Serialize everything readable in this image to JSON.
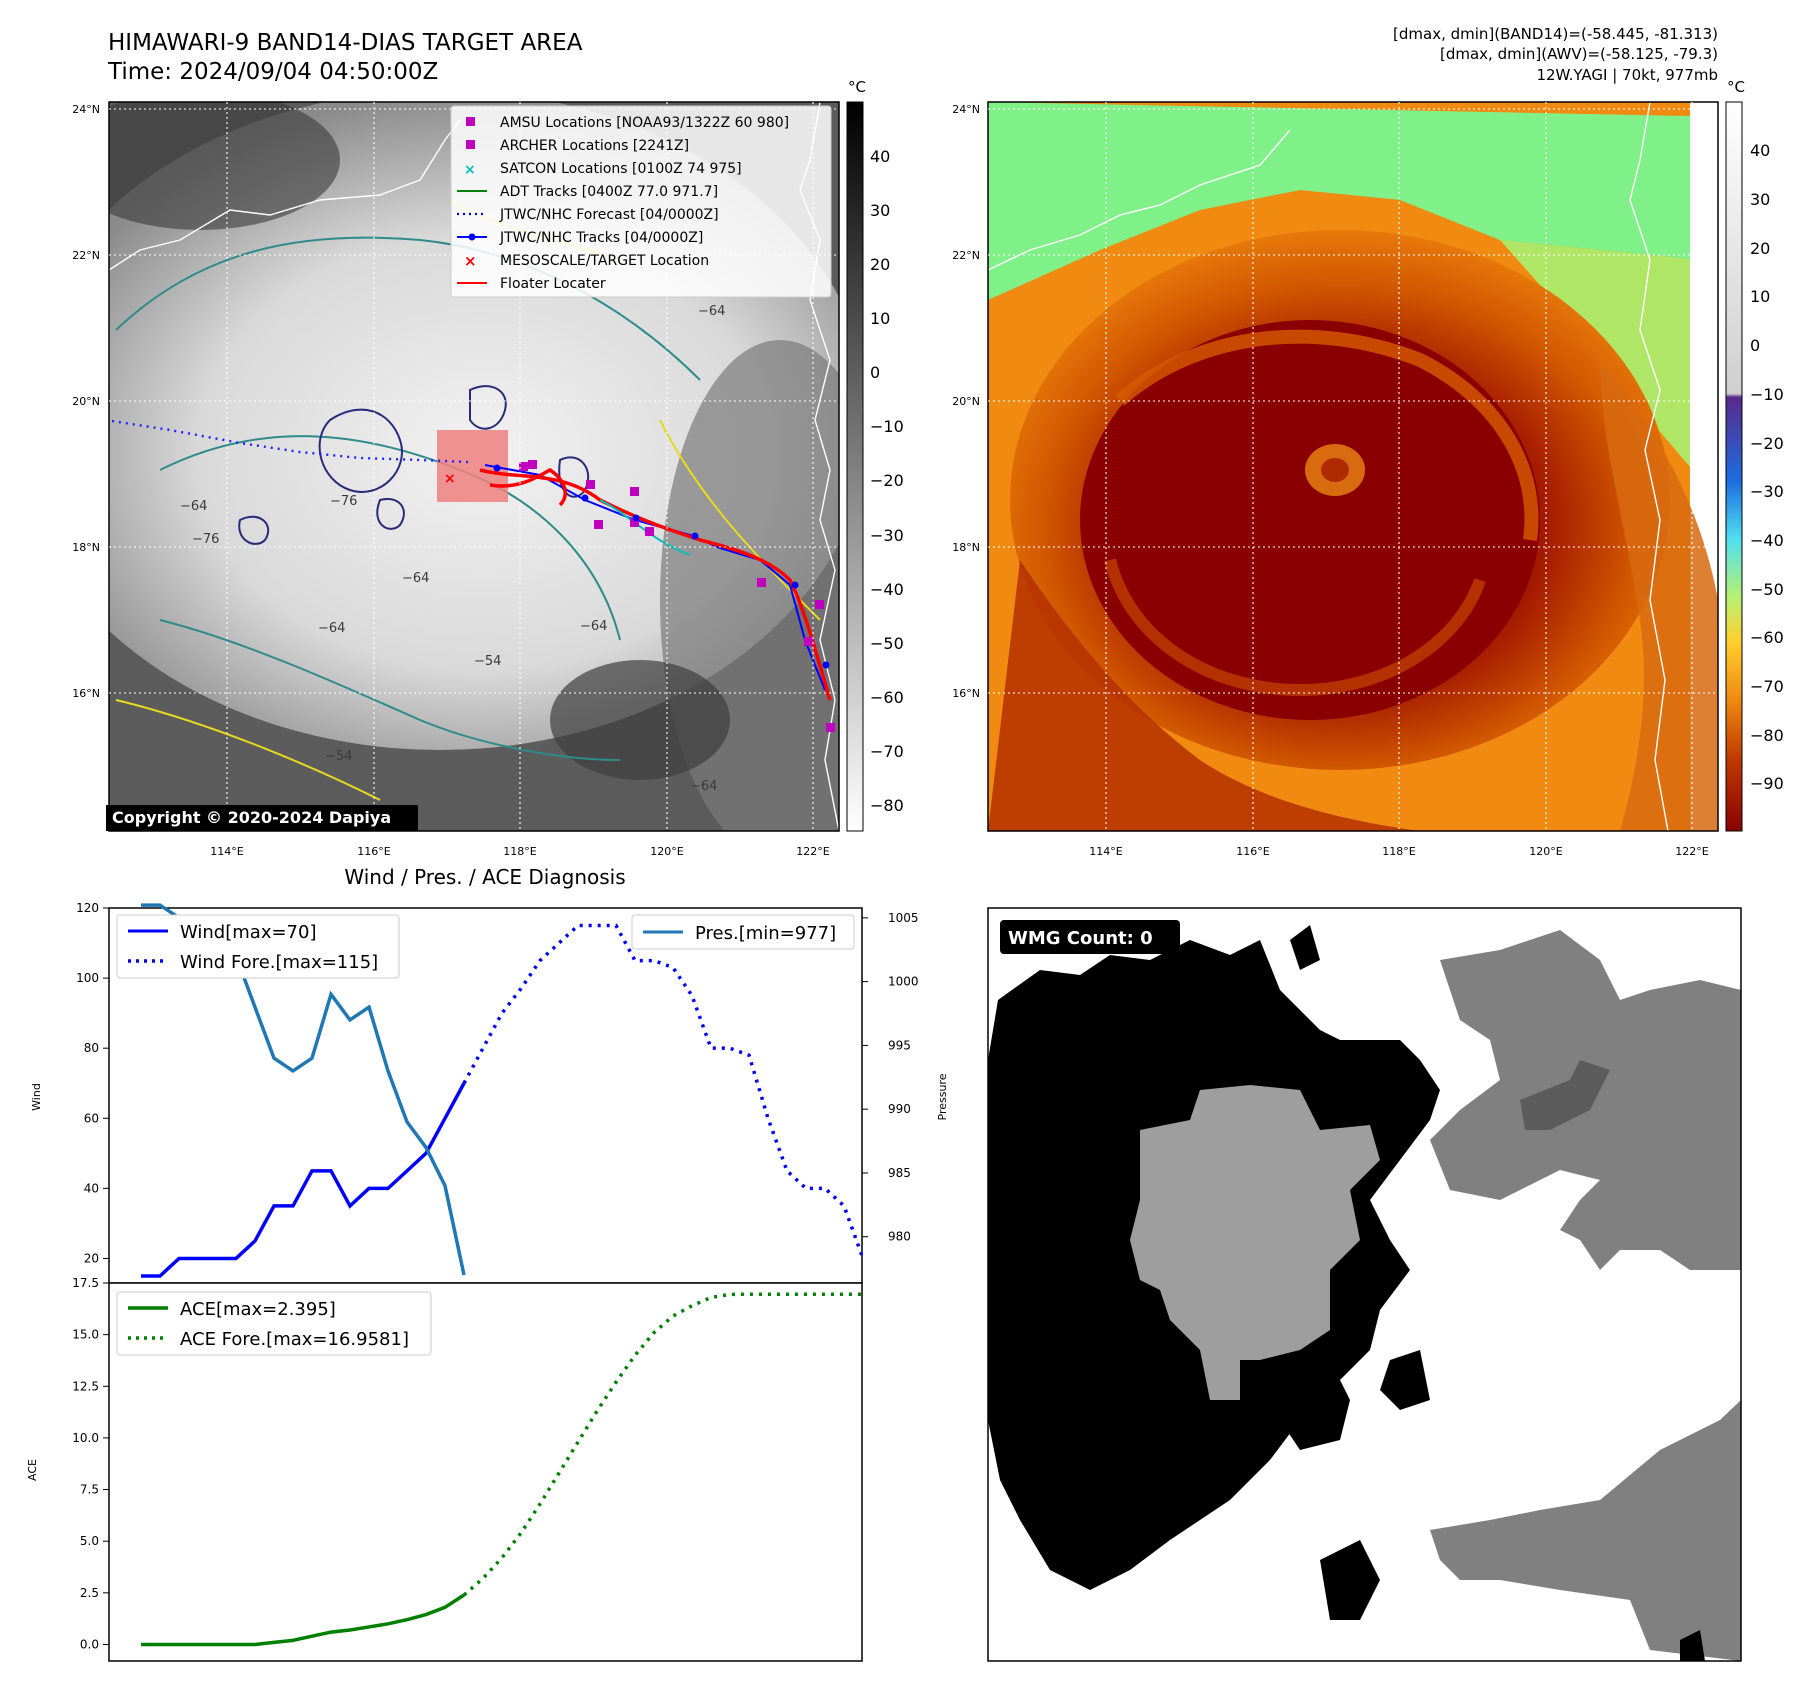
{
  "header": {
    "title_line1": "HIMAWARI-9 BAND14-DIAS TARGET AREA",
    "title_line2": "Time: 2024/09/04 04:50:00Z",
    "info_line1": "[dmax, dmin](BAND14)=(-58.445, -81.313)",
    "info_line2": "[dmax, dmin](AWV)=(-58.125, -79.3)",
    "info_line3": "12W.YAGI | 70kt, 977mb"
  },
  "colors": {
    "wind": "#0000ff",
    "pressure": "#1f77b4",
    "ace": "#008000",
    "floater": "#ff0000",
    "amsu": "#bf00bf",
    "satcon": "#00bfbf"
  },
  "map_left": {
    "lat_ticks": [
      "24°N",
      "22°N",
      "20°N",
      "18°N",
      "16°N"
    ],
    "lon_ticks": [
      "114°E",
      "116°E",
      "118°E",
      "120°E",
      "122°E"
    ],
    "colorbar_unit": "°C",
    "colorbar_ticks": [
      "40",
      "30",
      "20",
      "10",
      "0",
      "−10",
      "−20",
      "−30",
      "−40",
      "−50",
      "−60",
      "−70",
      "−80"
    ],
    "copyright": "Copyright © 2020-2024 Dapiya",
    "contour_labels": [
      "−64",
      "−76",
      "−76",
      "−64",
      "−64",
      "−54",
      "−64",
      "−54",
      "−64",
      "−64"
    ],
    "legend": [
      {
        "label": "AMSU Locations [NOAA93/1322Z 60 980]",
        "icon": "magenta-square"
      },
      {
        "label": "ARCHER Locations [2241Z]",
        "icon": "magenta-square"
      },
      {
        "label": "SATCON Locations [0100Z 74 975]",
        "icon": "cyan-x"
      },
      {
        "label": "ADT Tracks [0400Z 77.0 971.7]",
        "icon": "green-line"
      },
      {
        "label": "JTWC/NHC Forecast [04/0000Z]",
        "icon": "blue-dotted-line"
      },
      {
        "label": "JTWC/NHC Tracks [04/0000Z]",
        "icon": "blue-line-dot"
      },
      {
        "label": "MESOSCALE/TARGET Location",
        "icon": "red-x"
      },
      {
        "label": "Floater Locater",
        "icon": "red-line"
      }
    ]
  },
  "map_right": {
    "lat_ticks": [
      "24°N",
      "22°N",
      "20°N",
      "18°N",
      "16°N"
    ],
    "lon_ticks": [
      "114°E",
      "116°E",
      "118°E",
      "120°E",
      "122°E"
    ],
    "colorbar_unit": "°C",
    "colorbar_ticks": [
      "40",
      "30",
      "20",
      "10",
      "0",
      "−10",
      "−20",
      "−30",
      "−40",
      "−50",
      "−60",
      "−70",
      "−80",
      "−90"
    ]
  },
  "chart_data": [
    {
      "type": "line",
      "title": "Wind / Pres. / ACE Diagnosis",
      "ylabel": "Wind",
      "ylabel_right": "Pressure",
      "ylim": [
        13,
        120
      ],
      "ylim_right": [
        977,
        1006.4
      ],
      "yticks": [
        20,
        40,
        60,
        80,
        100,
        120
      ],
      "yticks_right": [
        980,
        985,
        990,
        995,
        1000,
        1005
      ],
      "x": [
        0,
        1,
        2,
        3,
        4,
        5,
        6,
        7,
        8,
        9,
        10,
        11,
        12,
        13,
        14,
        15,
        16,
        17,
        18,
        19,
        20,
        21,
        22,
        23,
        24,
        25,
        26,
        27,
        28,
        29,
        30,
        31,
        32,
        33,
        34,
        35,
        36,
        37,
        38
      ],
      "series": [
        {
          "name": "Wind[max=70]",
          "style": "solid",
          "x": [
            0,
            1,
            2,
            3,
            4,
            5,
            6,
            7,
            8,
            9,
            10,
            11,
            12,
            13,
            14,
            15,
            16,
            17
          ],
          "values": [
            15,
            15,
            20,
            20,
            20,
            20,
            25,
            35,
            35,
            45,
            45,
            35,
            40,
            40,
            45,
            50,
            60,
            70
          ]
        },
        {
          "name": "Wind Fore.[max=115]",
          "style": "dotted",
          "x": [
            17,
            18,
            19,
            20,
            21,
            22,
            23,
            24,
            25,
            26,
            27,
            28,
            29,
            30,
            31,
            32,
            33,
            34,
            35,
            36,
            37,
            38
          ],
          "values": [
            70,
            80,
            90,
            97,
            105,
            110,
            115,
            115,
            115,
            105,
            105,
            103,
            95,
            80,
            80,
            78,
            60,
            45,
            40,
            40,
            35,
            20
          ]
        },
        {
          "name": "Pres.[min=977]",
          "axis": "right",
          "style": "solid",
          "x": [
            0,
            1,
            2,
            3,
            4,
            5,
            6,
            7,
            8,
            9,
            10,
            11,
            12,
            13,
            14,
            15,
            16,
            17
          ],
          "values": [
            1006,
            1006,
            1005,
            1004,
            1002,
            1002,
            998,
            994,
            993,
            994,
            999,
            997,
            998,
            993,
            989,
            987,
            984,
            977
          ]
        }
      ]
    },
    {
      "type": "line",
      "ylabel": "ACE",
      "ylim": [
        -0.8,
        17.5
      ],
      "yticks": [
        0.0,
        2.5,
        5.0,
        7.5,
        10.0,
        12.5,
        15.0,
        17.5
      ],
      "series": [
        {
          "name": "ACE[max=2.395]",
          "style": "solid",
          "x": [
            0,
            1,
            2,
            3,
            4,
            5,
            6,
            7,
            8,
            9,
            10,
            11,
            12,
            13,
            14,
            15,
            16,
            17
          ],
          "values": [
            0,
            0,
            0,
            0,
            0,
            0,
            0,
            0.1,
            0.2,
            0.4,
            0.6,
            0.7,
            0.85,
            1.0,
            1.2,
            1.45,
            1.8,
            2.395
          ]
        },
        {
          "name": "ACE Fore.[max=16.9581]",
          "style": "dotted",
          "x": [
            17,
            18,
            19,
            20,
            21,
            22,
            23,
            24,
            25,
            26,
            27,
            28,
            29,
            30,
            31,
            32,
            33,
            34,
            35,
            36,
            37,
            38
          ],
          "values": [
            2.395,
            3.2,
            4.2,
            5.4,
            6.8,
            8.3,
            9.8,
            11.3,
            12.7,
            14.0,
            15.1,
            15.9,
            16.4,
            16.8,
            16.95,
            16.9581,
            16.9581,
            16.9581,
            16.9581,
            16.9581,
            16.9581,
            16.9581
          ]
        }
      ]
    }
  ],
  "wmg": {
    "label": "WMG Count: 0"
  }
}
